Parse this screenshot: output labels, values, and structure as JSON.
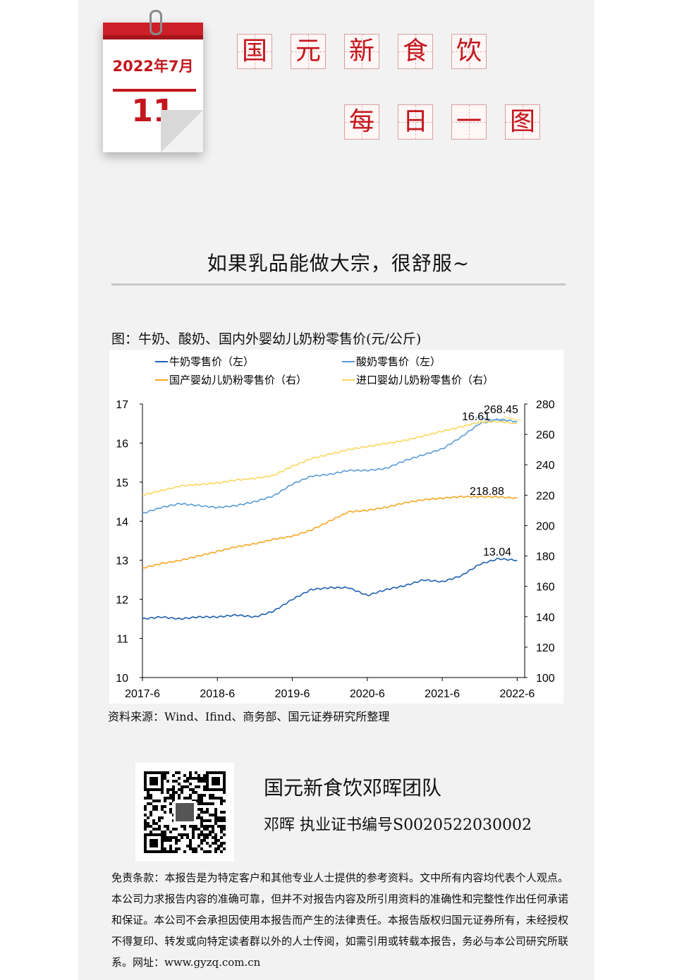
{
  "calendar": {
    "month": "2022年7月",
    "day": "11"
  },
  "title_chars_row1": [
    "国",
    "元",
    "新",
    "食",
    "饮"
  ],
  "title_chars_row2": [
    "每",
    "日",
    "一",
    "图"
  ],
  "headline": "如果乳品能做大宗，很舒服~",
  "figure_caption": "图：牛奶、酸奶、国内外婴幼儿奶粉零售价(元/公斤)",
  "source": "资料来源：Wind、Ifind、商务部、国元证券研究所整理",
  "team": {
    "name": "国元新食饮邓晖团队",
    "cert": "邓晖  执业证书编号S0020522030002"
  },
  "disclaimer": "免责条款：本报告是为特定客户和其他专业人士提供的参考资料。文中所有内容均代表个人观点。本公司力求报告内容的准确可靠，但并不对报告内容及所引用资料的准确性和完整性作出任何承诺和保证。本公司不会承担因使用本报告而产生的法律责任。本报告版权归国元证券所有，未经授权不得复印、转发或向特定读者群以外的人士传阅，如需引用或转载本报告，务必与本公司研究所联系。网址：www.gyzq.com.cn",
  "chart_data": {
    "type": "line",
    "x_ticks": [
      "2017-6",
      "2018-6",
      "2019-6",
      "2020-6",
      "2021-6",
      "2022-6"
    ],
    "y_left": {
      "ticks": [
        10,
        11,
        12,
        13,
        14,
        15,
        16,
        17
      ],
      "range": [
        10,
        17
      ]
    },
    "y_right": {
      "ticks": [
        100,
        120,
        140,
        160,
        180,
        200,
        220,
        240,
        260,
        280
      ],
      "range": [
        100,
        280
      ]
    },
    "legend_placement": "top",
    "annotations": [
      "16.61",
      "268.45",
      "218.88",
      "13.04"
    ],
    "series": [
      {
        "name": "牛奶零售价（左）",
        "axis": "left",
        "color": "#1f5fb0",
        "x": [
          2017.5,
          2017.75,
          2018.0,
          2018.25,
          2018.5,
          2018.75,
          2019.0,
          2019.25,
          2019.5,
          2019.75,
          2020.0,
          2020.25,
          2020.5,
          2020.75,
          2021.0,
          2021.25,
          2021.5,
          2021.75,
          2022.0,
          2022.25,
          2022.5
        ],
        "values": [
          11.5,
          11.55,
          11.5,
          11.55,
          11.55,
          11.6,
          11.55,
          11.7,
          12.0,
          12.25,
          12.3,
          12.3,
          12.1,
          12.25,
          12.35,
          12.5,
          12.45,
          12.6,
          12.9,
          13.04,
          13.0
        ]
      },
      {
        "name": "酸奶零售价（左）",
        "axis": "left",
        "color": "#5b9bd5",
        "x": [
          2017.5,
          2017.75,
          2018.0,
          2018.25,
          2018.5,
          2018.75,
          2019.0,
          2019.25,
          2019.5,
          2019.75,
          2020.0,
          2020.25,
          2020.5,
          2020.75,
          2021.0,
          2021.25,
          2021.5,
          2021.75,
          2022.0,
          2022.25,
          2022.5
        ],
        "values": [
          14.2,
          14.35,
          14.45,
          14.4,
          14.35,
          14.4,
          14.5,
          14.65,
          14.95,
          15.15,
          15.2,
          15.3,
          15.3,
          15.35,
          15.55,
          15.7,
          15.85,
          16.15,
          16.5,
          16.61,
          16.55
        ]
      },
      {
        "name": "国产婴幼儿奶粉零售价（右）",
        "axis": "right",
        "color": "#f5a623",
        "x": [
          2017.5,
          2017.75,
          2018.0,
          2018.25,
          2018.5,
          2018.75,
          2019.0,
          2019.25,
          2019.5,
          2019.75,
          2020.0,
          2020.25,
          2020.5,
          2020.75,
          2021.0,
          2021.25,
          2021.5,
          2021.75,
          2022.0,
          2022.25,
          2022.5
        ],
        "values": [
          172,
          175,
          177,
          180,
          183,
          186,
          188,
          191,
          193,
          197,
          203,
          209,
          210,
          212,
          215,
          217,
          218,
          219,
          219,
          218.88,
          218
        ]
      },
      {
        "name": "进口婴幼儿奶粉零售价（右）",
        "axis": "right",
        "color": "#f7d65b",
        "x": [
          2017.5,
          2017.75,
          2018.0,
          2018.25,
          2018.5,
          2018.75,
          2019.0,
          2019.25,
          2019.5,
          2019.75,
          2020.0,
          2020.25,
          2020.5,
          2020.75,
          2021.0,
          2021.25,
          2021.5,
          2021.75,
          2022.0,
          2022.25,
          2022.5
        ],
        "values": [
          220,
          223,
          226,
          227,
          228,
          230,
          231,
          233,
          239,
          244,
          247,
          250,
          252,
          254,
          256,
          259,
          262,
          265,
          268,
          268.45,
          267
        ]
      }
    ]
  }
}
